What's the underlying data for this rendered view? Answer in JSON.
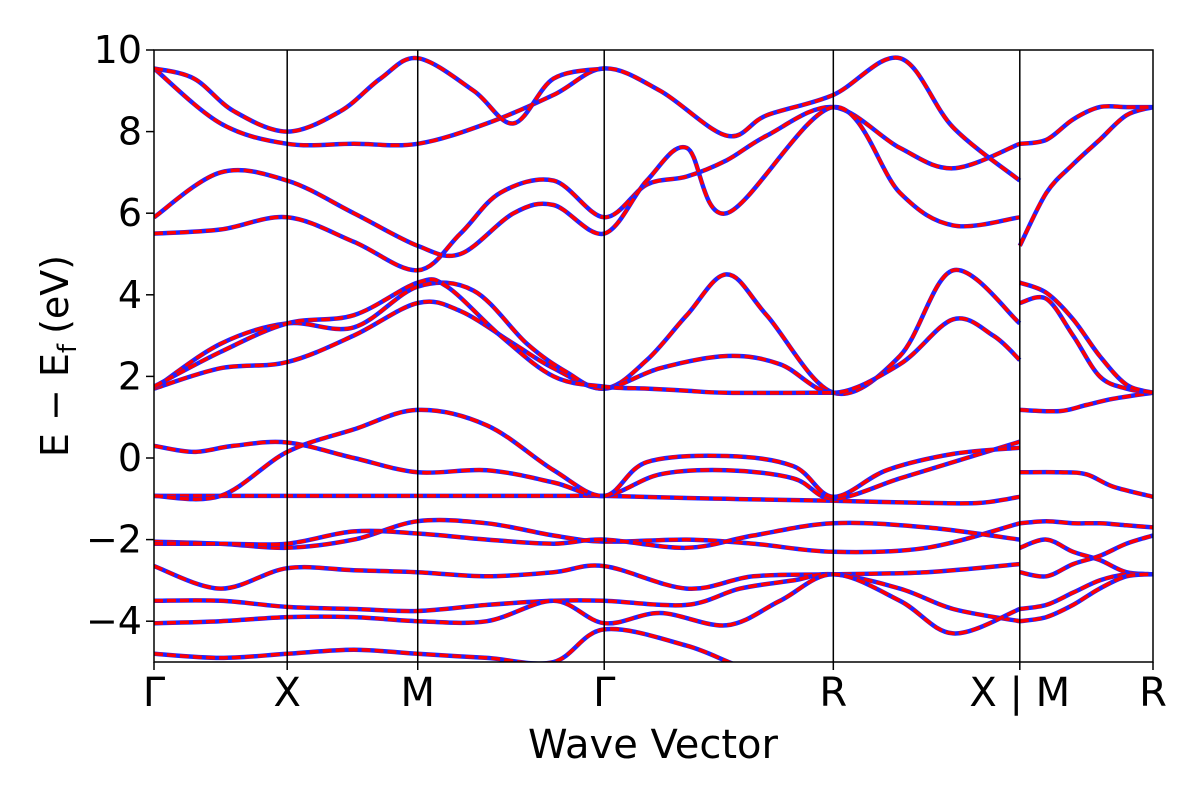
{
  "chart_data": {
    "type": "line",
    "title": "",
    "xlabel": "Wave Vector",
    "ylabel_main": "E − E",
    "ylabel_sub": "f",
    "ylabel_unit": "(eV)",
    "ylim": [
      -5,
      10
    ],
    "y_ticks": [
      -4,
      -2,
      0,
      2,
      4,
      6,
      8,
      10
    ],
    "y_tick_labels": [
      "−4",
      "−2",
      "0",
      "2",
      "4",
      "6",
      "8",
      "10"
    ],
    "x_range": [
      0,
      7.5
    ],
    "kpoint_ticks": [
      {
        "x": 0.0,
        "label": "Γ"
      },
      {
        "x": 1.0,
        "label": "X"
      },
      {
        "x": 1.98,
        "label": "M"
      },
      {
        "x": 3.38,
        "label": "Γ"
      },
      {
        "x": 5.1,
        "label": "R"
      },
      {
        "x": 6.5,
        "label": "X | M"
      },
      {
        "x": 7.5,
        "label": "R"
      }
    ],
    "segment_dividers": [
      1.0,
      1.98,
      3.38,
      5.1,
      6.5
    ],
    "styles": {
      "band_color": "#ff0000",
      "overlay_color": "#2222ff",
      "axis_color": "#000000"
    },
    "series": [
      {
        "x": [
          0,
          0.3,
          0.6,
          1.0,
          1.5,
          1.98,
          2.6,
          3.0,
          3.38,
          4.0,
          4.3,
          4.6,
          5.1,
          5.8,
          6.2,
          6.5
        ],
        "values": [
          -0.93,
          -0.93,
          -0.93,
          -0.93,
          -0.93,
          -0.93,
          -0.93,
          -0.93,
          -0.93,
          -0.98,
          -1.0,
          -1.02,
          -1.05,
          -1.1,
          -1.1,
          -0.95
        ]
      },
      {
        "x": [
          0,
          0.3,
          0.6,
          1.0,
          1.5,
          1.98,
          2.5,
          3.0,
          3.38,
          3.8,
          4.3,
          4.8,
          5.1,
          5.6,
          6.0,
          6.5
        ],
        "values": [
          0.3,
          0.15,
          0.3,
          0.38,
          0.0,
          -0.35,
          -0.3,
          -0.6,
          -0.93,
          -0.4,
          -0.3,
          -0.5,
          -1.0,
          -0.5,
          -0.1,
          0.4
        ]
      },
      {
        "x": [
          0,
          0.5,
          1.0,
          1.5,
          1.98,
          2.5,
          3.0,
          3.38,
          3.7,
          4.3,
          4.8,
          5.1,
          5.5,
          6.0,
          6.5
        ],
        "values": [
          -0.93,
          -0.93,
          0.15,
          0.7,
          1.18,
          0.8,
          -0.3,
          -0.93,
          -0.1,
          0.05,
          -0.2,
          -0.95,
          -0.3,
          0.1,
          0.25
        ]
      },
      {
        "x": [
          0,
          0.5,
          1.0,
          1.5,
          1.98,
          2.3,
          2.7,
          3.0,
          3.38,
          3.7,
          4.0,
          4.3,
          4.6,
          5.1,
          5.6,
          6.0,
          6.5
        ],
        "values": [
          1.7,
          2.2,
          2.35,
          3.0,
          3.8,
          3.6,
          2.8,
          2.2,
          1.7,
          2.4,
          3.5,
          4.5,
          3.5,
          1.6,
          2.5,
          4.6,
          3.3
        ]
      },
      {
        "x": [
          0,
          0.5,
          1.0,
          1.5,
          1.98,
          2.4,
          2.8,
          3.1,
          3.38,
          3.8,
          4.3,
          4.7,
          5.1,
          5.6,
          6.0,
          6.3,
          6.5
        ],
        "values": [
          1.7,
          2.8,
          3.3,
          3.2,
          4.2,
          4.1,
          2.8,
          2.1,
          1.7,
          2.2,
          2.5,
          2.3,
          1.6,
          2.3,
          3.4,
          3.0,
          2.4
        ]
      },
      {
        "x": [
          0,
          0.5,
          1.0,
          1.5,
          1.98,
          2.2,
          2.6,
          3.0,
          3.38,
          3.7,
          4.0,
          4.3,
          5.1
        ],
        "values": [
          1.75,
          2.6,
          3.3,
          3.5,
          4.3,
          4.2,
          3.0,
          2.0,
          1.75,
          1.7,
          1.65,
          1.6,
          1.6
        ]
      },
      {
        "x": [
          0,
          0.5,
          1.0,
          1.5,
          1.98,
          2.3,
          2.6,
          3.0,
          3.38,
          3.7,
          4.0,
          4.3,
          4.6,
          5.1,
          5.6,
          6.0,
          6.5
        ],
        "values": [
          5.5,
          5.6,
          5.9,
          5.3,
          4.6,
          5.5,
          6.5,
          6.8,
          5.9,
          6.7,
          6.9,
          7.3,
          7.9,
          8.6,
          7.6,
          7.1,
          7.7
        ]
      },
      {
        "x": [
          0,
          0.5,
          1.0,
          1.5,
          1.98,
          2.3,
          2.7,
          3.0,
          3.38,
          3.7,
          4.0,
          4.3,
          5.1,
          5.6,
          6.0,
          6.5
        ],
        "values": [
          5.9,
          7.0,
          6.8,
          6.0,
          5.2,
          5.0,
          6.0,
          6.2,
          5.5,
          6.8,
          7.6,
          6.0,
          8.6,
          6.5,
          5.7,
          5.9
        ]
      },
      {
        "x": [
          0,
          0.5,
          1.0,
          1.5,
          1.98,
          2.5,
          3.0,
          3.38,
          3.8,
          4.3,
          4.6,
          5.1,
          5.6,
          6.0,
          6.5
        ],
        "values": [
          9.55,
          8.2,
          7.7,
          7.7,
          7.7,
          8.2,
          8.9,
          9.55,
          9.0,
          7.9,
          8.4,
          8.9,
          9.8,
          8.1,
          6.8
        ]
      },
      {
        "x": [
          0,
          0.3,
          0.6,
          1.0,
          1.4,
          1.7,
          1.98,
          2.4,
          2.7,
          3.0,
          3.38
        ],
        "values": [
          9.55,
          9.3,
          8.5,
          8.0,
          8.5,
          9.3,
          9.8,
          9.0,
          8.2,
          9.3,
          9.55
        ]
      },
      {
        "x": [
          0,
          0.5,
          1.0,
          1.5,
          1.98,
          2.5,
          3.0,
          3.38,
          4.0,
          4.5,
          5.1,
          5.8,
          6.5
        ],
        "values": [
          -2.05,
          -2.1,
          -2.2,
          -2.0,
          -1.55,
          -1.6,
          -1.9,
          -2.05,
          -2.0,
          -2.1,
          -2.3,
          -2.2,
          -1.6
        ]
      },
      {
        "x": [
          0,
          0.5,
          1.0,
          1.5,
          1.98,
          2.5,
          3.0,
          3.38,
          4.0,
          4.5,
          5.1,
          5.8,
          6.5
        ],
        "values": [
          -2.1,
          -2.1,
          -2.1,
          -1.8,
          -1.85,
          -2.0,
          -2.1,
          -2.0,
          -2.2,
          -1.9,
          -1.6,
          -1.7,
          -2.0
        ]
      },
      {
        "x": [
          0,
          0.5,
          1.0,
          1.5,
          1.98,
          2.5,
          3.0,
          3.38,
          4.0,
          4.5,
          5.1,
          5.8,
          6.5
        ],
        "values": [
          -2.65,
          -3.2,
          -2.7,
          -2.75,
          -2.8,
          -2.9,
          -2.8,
          -2.65,
          -3.2,
          -2.9,
          -2.85,
          -2.8,
          -2.6
        ]
      },
      {
        "x": [
          0,
          0.5,
          1.0,
          1.5,
          1.98,
          2.5,
          3.0,
          3.38,
          4.0,
          4.4,
          4.8,
          5.1,
          5.6,
          6.0,
          6.5
        ],
        "values": [
          -3.5,
          -3.5,
          -3.65,
          -3.7,
          -3.75,
          -3.6,
          -3.5,
          -3.5,
          -3.6,
          -3.2,
          -3.0,
          -2.85,
          -3.2,
          -3.7,
          -4.0
        ]
      },
      {
        "x": [
          0,
          0.5,
          1.0,
          1.5,
          1.98,
          2.5,
          3.0,
          3.38,
          3.8,
          4.3,
          4.7,
          5.1,
          5.6,
          6.0,
          6.5
        ],
        "values": [
          -4.05,
          -4.0,
          -3.9,
          -3.9,
          -4.0,
          -4.0,
          -3.5,
          -4.05,
          -3.8,
          -4.1,
          -3.5,
          -2.85,
          -3.5,
          -4.3,
          -3.7
        ]
      },
      {
        "x": [
          0,
          0.5,
          1.0,
          1.5,
          1.98,
          2.5,
          3.0,
          3.38,
          4.0,
          4.5,
          5.1
        ],
        "values": [
          -4.8,
          -4.9,
          -4.8,
          -4.7,
          -4.8,
          -4.9,
          -5.0,
          -4.2,
          -4.6,
          -5.2,
          -5.4
        ]
      },
      {
        "x": [
          6.5,
          6.8,
          7.0,
          7.2,
          7.5
        ],
        "values": [
          -0.35,
          -0.35,
          -0.4,
          -0.7,
          -0.95
        ]
      },
      {
        "x": [
          6.5,
          6.8,
          7.0,
          7.2,
          7.5
        ],
        "values": [
          1.18,
          1.15,
          1.3,
          1.45,
          1.6
        ]
      },
      {
        "x": [
          6.5,
          6.7,
          6.9,
          7.1,
          7.3,
          7.5
        ],
        "values": [
          3.8,
          3.9,
          3.0,
          2.0,
          1.7,
          1.6
        ]
      },
      {
        "x": [
          6.5,
          6.7,
          6.9,
          7.1,
          7.3,
          7.5
        ],
        "values": [
          4.3,
          4.05,
          3.4,
          2.5,
          1.8,
          1.6
        ]
      },
      {
        "x": [
          6.5,
          6.7,
          6.9,
          7.1,
          7.3,
          7.5
        ],
        "values": [
          5.2,
          6.5,
          7.2,
          7.8,
          8.4,
          8.6
        ]
      },
      {
        "x": [
          6.5,
          6.7,
          6.9,
          7.1,
          7.3,
          7.5
        ],
        "values": [
          7.7,
          7.8,
          8.3,
          8.6,
          8.6,
          8.6
        ]
      },
      {
        "x": [
          6.5,
          6.7,
          6.9,
          7.1,
          7.3,
          7.5
        ],
        "values": [
          -1.6,
          -1.55,
          -1.6,
          -1.6,
          -1.65,
          -1.7
        ]
      },
      {
        "x": [
          6.5,
          6.7,
          6.9,
          7.1,
          7.3,
          7.5
        ],
        "values": [
          -2.2,
          -2.0,
          -2.3,
          -2.5,
          -2.8,
          -2.85
        ]
      },
      {
        "x": [
          6.5,
          6.7,
          6.9,
          7.1,
          7.3,
          7.5
        ],
        "values": [
          -2.8,
          -2.9,
          -2.6,
          -2.4,
          -2.1,
          -1.9
        ]
      },
      {
        "x": [
          6.5,
          6.7,
          6.9,
          7.1,
          7.3,
          7.5
        ],
        "values": [
          -3.7,
          -3.6,
          -3.3,
          -3.0,
          -2.85,
          -2.85
        ]
      },
      {
        "x": [
          6.5,
          6.7,
          6.9,
          7.1,
          7.3,
          7.5
        ],
        "values": [
          -4.0,
          -3.9,
          -3.6,
          -3.2,
          -2.9,
          -2.85
        ]
      }
    ]
  }
}
